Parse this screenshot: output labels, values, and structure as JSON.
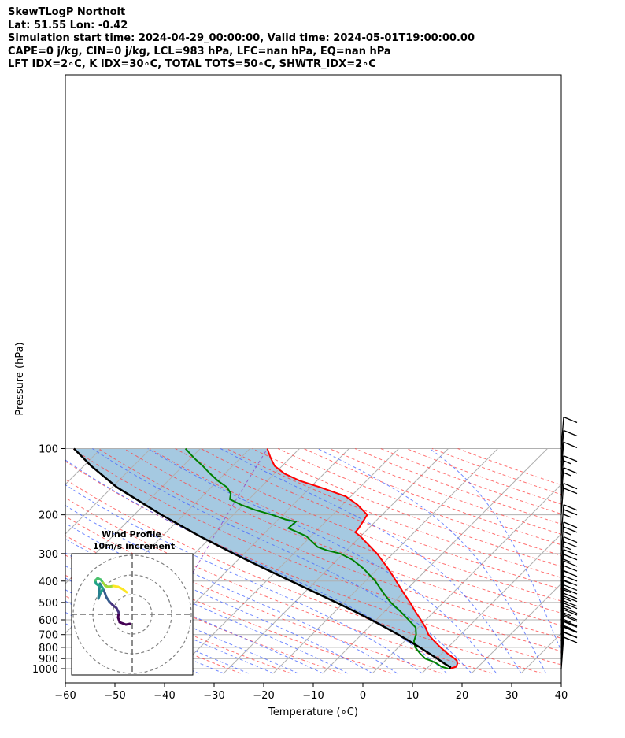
{
  "header": {
    "line1": "SkewTLogP Northolt",
    "line2": "Lat: 51.55   Lon: -0.42",
    "line3": "Simulation start time: 2024-04-29_00:00:00, Valid time: 2024-05-01T19:00:00.00",
    "line4": "CAPE=0 j/kg, CIN=0 j/kg, LCL=983 hPa, LFC=nan hPa, EQ=nan hPa",
    "line5": "LFT IDX=2∘C, K IDX=30∘C, TOTAL TOTS=50∘C, SHWTR_IDX=2∘C"
  },
  "chart_data": {
    "type": "line",
    "xlabel": "Temperature (∘C)",
    "ylabel": "Pressure (hPa)",
    "xlim": [
      -60,
      40
    ],
    "ylim": [
      1050,
      100
    ],
    "y_scale": "log",
    "x_ticks": [
      -60,
      -50,
      -40,
      -30,
      -20,
      -10,
      0,
      10,
      20,
      30,
      40
    ],
    "x_tick_labels": [
      "−60",
      "−50",
      "−40",
      "−30",
      "−20",
      "−10",
      "0",
      "10",
      "20",
      "30",
      "40"
    ],
    "y_ticks": [
      1000,
      900,
      800,
      700,
      600,
      500,
      400,
      300,
      200,
      100
    ],
    "skew": "45 degree isotherms",
    "grid": true,
    "series": [
      {
        "color": "#ff0000",
        "pressure": [
          1000,
          980,
          950,
          920,
          900,
          850,
          800,
          750,
          700,
          650,
          600,
          550,
          500,
          450,
          400,
          350,
          300,
          270,
          250,
          240,
          230,
          200,
          180,
          165,
          150,
          140,
          130,
          120,
          110,
          100
        ],
        "temperature": [
          14.6,
          15.6,
          15.2,
          14.5,
          13.6,
          11.0,
          8.5,
          6.0,
          3.5,
          1.5,
          -1.0,
          -3.8,
          -6.7,
          -10.1,
          -13.8,
          -18.0,
          -23.2,
          -27.2,
          -30.1,
          -31.9,
          -32.0,
          -33.0,
          -37.0,
          -41.0,
          -48.0,
          -53.5,
          -58.0,
          -61.5,
          -64.0,
          -66.5
        ]
      },
      {
        "color": "#008000",
        "pressure": [
          1000,
          980,
          950,
          920,
          900,
          850,
          800,
          750,
          700,
          650,
          600,
          550,
          500,
          450,
          400,
          350,
          320,
          300,
          290,
          280,
          250,
          230,
          215,
          210,
          200,
          190,
          180,
          170,
          160,
          150,
          140,
          130,
          120,
          110,
          100
        ],
        "dewpoint": [
          14.4,
          12.6,
          11.2,
          9.3,
          7.7,
          5.5,
          3.4,
          1.9,
          1.0,
          -0.5,
          -3.5,
          -6.8,
          -10.6,
          -14.2,
          -18.0,
          -23.0,
          -26.9,
          -30.6,
          -34.0,
          -36.5,
          -41.0,
          -46.2,
          -46.0,
          -48.5,
          -52.2,
          -56.6,
          -60.5,
          -63.8,
          -64.8,
          -66.8,
          -70.0,
          -73.0,
          -76.0,
          -79.5,
          -83.0
        ]
      },
      {
        "color": "#000000",
        "pressure": [
          1000,
          983,
          950,
          900,
          850,
          800,
          750,
          700,
          650,
          600,
          550,
          500,
          450,
          400,
          350,
          300,
          250,
          200,
          150,
          120,
          100
        ],
        "parcel_temperature": [
          14.6,
          14.4,
          12.7,
          10.1,
          7.3,
          4.3,
          1.0,
          -2.6,
          -6.6,
          -11.0,
          -16.0,
          -21.6,
          -27.9,
          -35.0,
          -43.0,
          -52.1,
          -62.5,
          -74.5,
          -89.0,
          -98.5,
          -105.5
        ]
      }
    ],
    "wind_barbs": {
      "pressure": [
        1000,
        950,
        900,
        850,
        800,
        750,
        700,
        650,
        600,
        550,
        500,
        450,
        400,
        350,
        300,
        250,
        200,
        170,
        150,
        130,
        115,
        100
      ],
      "speed_kt": [
        10,
        15,
        20,
        20,
        25,
        25,
        25,
        25,
        25,
        25,
        25,
        25,
        25,
        25,
        25,
        25,
        20,
        15,
        15,
        10,
        10,
        10
      ]
    },
    "hodograph": {
      "title": "Wind Profile",
      "subtitle": "10m/s increment"
    }
  }
}
